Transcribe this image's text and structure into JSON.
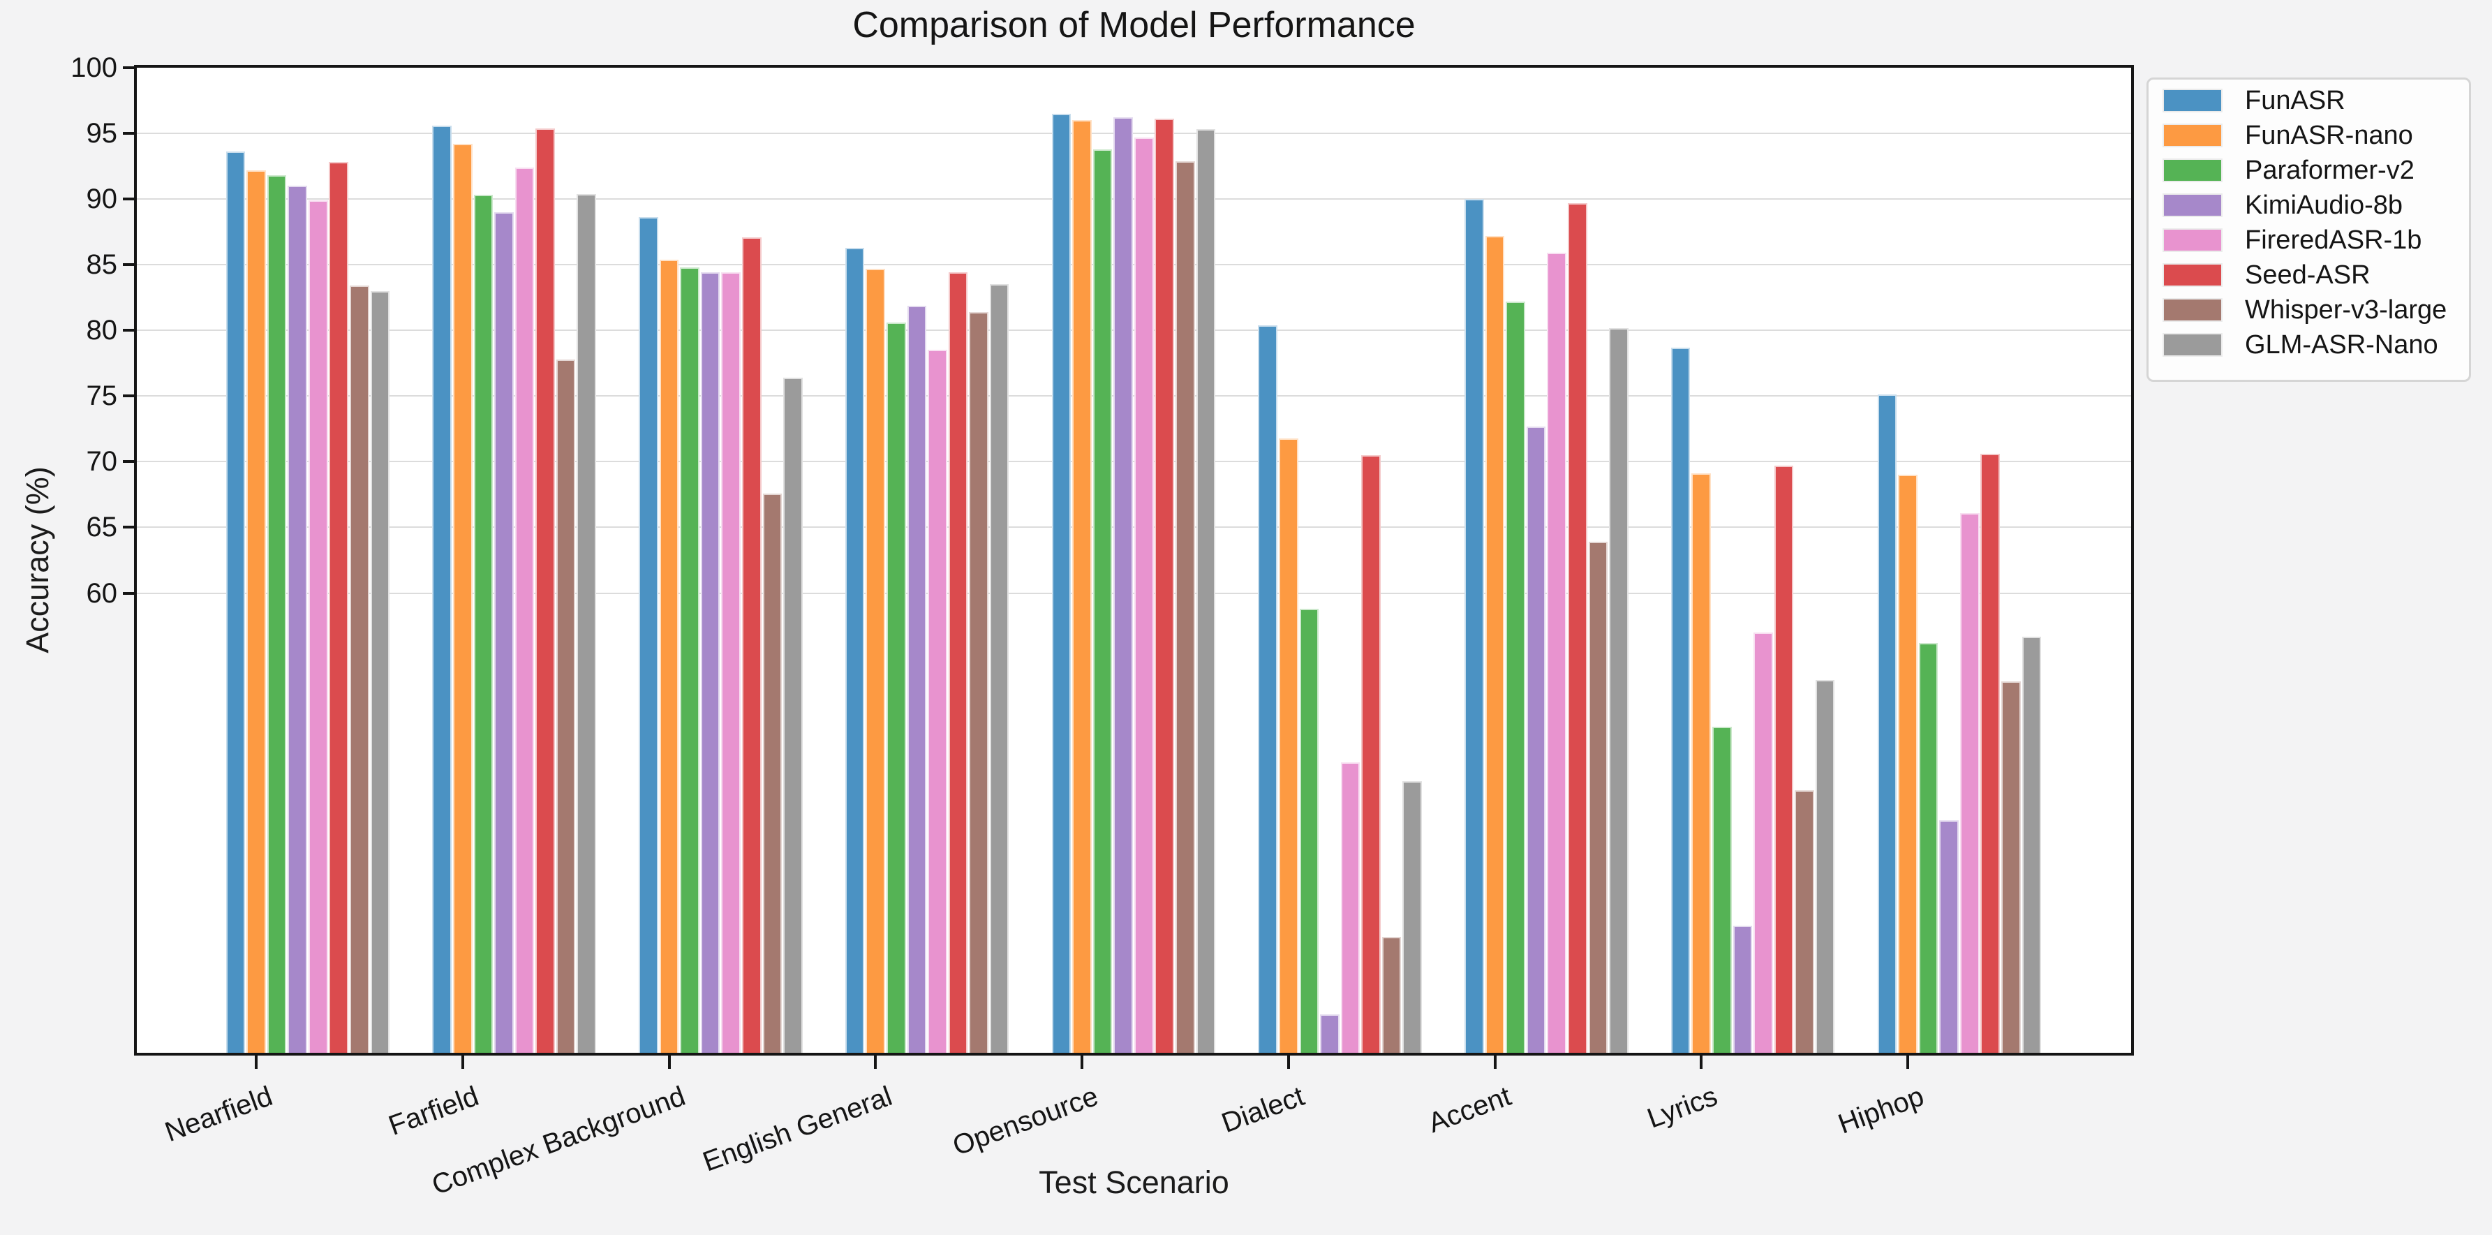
{
  "figure": {
    "background_color": "#f3f3f4",
    "plot_background_color": "#ffffff",
    "grid_color": "#dcdcdc",
    "axis_color": "#151515"
  },
  "chart_data": {
    "type": "bar",
    "title": "Comparison of Model Performance",
    "xlabel": "Test Scenario",
    "ylabel": "Accuracy (%)",
    "ylim": [
      25,
      100
    ],
    "yticks": [
      60,
      65,
      70,
      75,
      80,
      85,
      90,
      95,
      100
    ],
    "grid": "horizontal-y",
    "legend_position": "outside-upper-right",
    "x_tick_rotation_deg": 20,
    "categories": [
      "Nearfield",
      "Farfield",
      "Complex Background",
      "English General",
      "Opensource",
      "Dialect",
      "Accent",
      "Lyrics",
      "Hiphop"
    ],
    "series": [
      {
        "name": "FunASR",
        "color": "#4b92c3",
        "values": [
          93.6,
          95.6,
          88.6,
          86.3,
          96.5,
          80.4,
          90.0,
          78.7,
          75.1
        ]
      },
      {
        "name": "FunASR-nano",
        "color": "#fd9a42",
        "values": [
          92.2,
          94.2,
          85.4,
          84.7,
          96.0,
          71.8,
          87.2,
          69.1,
          69.0
        ]
      },
      {
        "name": "Paraformer-v2",
        "color": "#55b355",
        "values": [
          91.8,
          90.3,
          84.8,
          80.6,
          93.8,
          58.8,
          82.2,
          49.8,
          56.2
        ]
      },
      {
        "name": "KimiAudio-8b",
        "color": "#a688ca",
        "values": [
          91.0,
          89.0,
          84.4,
          81.9,
          96.2,
          27.9,
          72.7,
          34.7,
          42.7
        ]
      },
      {
        "name": "FireredASR-1b",
        "color": "#e893cf",
        "values": [
          89.9,
          92.4,
          84.4,
          78.5,
          94.7,
          47.1,
          85.9,
          57.0,
          66.1
        ]
      },
      {
        "name": "Seed-ASR",
        "color": "#db4b4e",
        "values": [
          92.8,
          95.4,
          87.1,
          84.4,
          96.1,
          70.5,
          89.7,
          69.7,
          70.6
        ]
      },
      {
        "name": "Whisper-v3-large",
        "color": "#a4796f",
        "values": [
          83.4,
          77.8,
          67.6,
          81.4,
          92.9,
          33.8,
          63.9,
          45.0,
          53.3
        ]
      },
      {
        "name": "GLM-ASR-Nano",
        "color": "#9b9b9b",
        "values": [
          83.0,
          90.4,
          76.4,
          83.5,
          95.3,
          45.7,
          80.2,
          53.4,
          56.7
        ]
      }
    ]
  }
}
